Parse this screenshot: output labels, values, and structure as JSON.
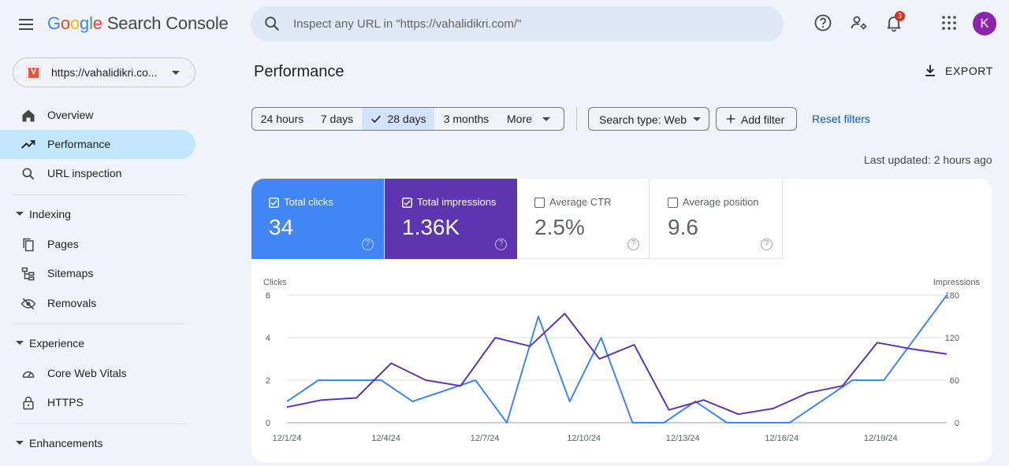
{
  "app": {
    "logo_letters": [
      "G",
      "o",
      "o",
      "g",
      "l",
      "e"
    ],
    "product": "Search Console"
  },
  "search": {
    "placeholder": "Inspect any URL in \"https://vahalidikri.com/\""
  },
  "header_icons": {
    "help": "help-icon",
    "users": "manage-users-icon",
    "notifications": "bell-icon",
    "notification_count": "3",
    "apps": "apps-grid-icon"
  },
  "user": {
    "initial": "K",
    "color": "#8e24aa"
  },
  "property": {
    "url": "https://vahalidikri.co...",
    "favicon_letter": "V"
  },
  "sidebar": {
    "top_items": [
      {
        "label": "Overview",
        "icon": "home-icon"
      },
      {
        "label": "Performance",
        "icon": "trending-up-icon",
        "active": true
      },
      {
        "label": "URL inspection",
        "icon": "search-icon"
      }
    ],
    "sections": [
      {
        "label": "Indexing",
        "items": [
          {
            "label": "Pages",
            "icon": "pages-icon"
          },
          {
            "label": "Sitemaps",
            "icon": "sitemap-icon"
          },
          {
            "label": "Removals",
            "icon": "visibility-off-icon"
          }
        ]
      },
      {
        "label": "Experience",
        "items": [
          {
            "label": "Core Web Vitals",
            "icon": "speed-gauge-icon"
          },
          {
            "label": "HTTPS",
            "icon": "lock-icon"
          }
        ]
      },
      {
        "label": "Enhancements",
        "items": []
      }
    ]
  },
  "main": {
    "title": "Performance",
    "export_label": "EXPORT",
    "date_ranges": [
      "24 hours",
      "7 days",
      "28 days",
      "3 months",
      "More"
    ],
    "selected_range": "28 days",
    "search_type": "Search type: Web",
    "add_filter": "Add filter",
    "reset_filters": "Reset filters",
    "last_updated": "Last updated: 2 hours ago"
  },
  "metrics": [
    {
      "label": "Total clicks",
      "value": "34",
      "checked": true,
      "color": "#4285f4"
    },
    {
      "label": "Total impressions",
      "value": "1.36K",
      "checked": true,
      "color": "#5e35b1"
    },
    {
      "label": "Average CTR",
      "value": "2.5%",
      "checked": false
    },
    {
      "label": "Average position",
      "value": "9.6",
      "checked": false
    }
  ],
  "chart_data": {
    "type": "line",
    "left_axis_label": "Clicks",
    "right_axis_label": "Impressions",
    "left_ylim": [
      0,
      6
    ],
    "right_ylim": [
      0,
      180
    ],
    "left_ticks": [
      "0",
      "2",
      "4",
      "6"
    ],
    "right_ticks": [
      "0",
      "60",
      "120",
      "180"
    ],
    "x_tick_labels": [
      "12/1/24",
      "12/4/24",
      "12/7/24",
      "12/10/24",
      "12/13/24",
      "12/16/24",
      "12/19/24"
    ],
    "grid": true,
    "series": [
      {
        "name": "Clicks",
        "axis": "left",
        "color": "#4285f4",
        "values": [
          1,
          2,
          2,
          2,
          1,
          1.5,
          2,
          0,
          5,
          1,
          4,
          0,
          0,
          1,
          0,
          0,
          0,
          1,
          2,
          2,
          4,
          6
        ]
      },
      {
        "name": "Impressions",
        "axis": "right",
        "color": "#5e35b1",
        "values": [
          22,
          32,
          35,
          84,
          60,
          52,
          120,
          108,
          154,
          90,
          110,
          18,
          32,
          12,
          20,
          42,
          52,
          113,
          104,
          97
        ]
      }
    ],
    "x_points_clicks": [
      "12/1/24",
      "12/2/24",
      "12/3/24",
      "12/4/24",
      "12/4/24",
      "12/5/24",
      "12/6/24",
      "12/6/24",
      "12/7/24",
      "12/8/24",
      "12/9/24",
      "12/10/24",
      "12/11/24",
      "12/12/24",
      "12/13/24",
      "12/14/24",
      "12/15/24",
      "12/16/24",
      "12/17/24",
      "12/18/24",
      "12/19/24",
      "12/20/24"
    ]
  }
}
